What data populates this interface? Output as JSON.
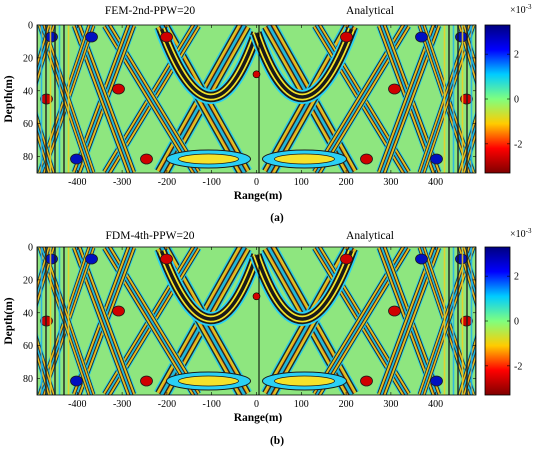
{
  "chart_data": [
    {
      "type": "heatmap",
      "subfigure_label": "(a)",
      "left_title": "FEM-2nd-PPW=20",
      "right_title": "Analytical",
      "xlabel": "Range(m)",
      "ylabel": "Depth(m)",
      "xlim": [
        -490,
        490
      ],
      "ylim": [
        0,
        90
      ],
      "y_inverted": true,
      "xticks": [
        -400,
        -300,
        -200,
        -100,
        0,
        100,
        200,
        300,
        400
      ],
      "yticks": [
        0,
        20,
        40,
        60,
        80
      ],
      "source": {
        "x": 0,
        "y": 30
      },
      "colorbar": {
        "exponent_label": "×10",
        "exponent": "-3",
        "ticks": [
          2,
          0,
          -2
        ],
        "range": [
          -3.3,
          3.3
        ],
        "colormap": [
          "#7f0000",
          "#ff0000",
          "#ffcc00",
          "#7fff7f",
          "#00ccff",
          "#0000ff",
          "#00007f"
        ]
      }
    },
    {
      "type": "heatmap",
      "subfigure_label": "(b)",
      "left_title": "FDM-4th-PPW=20",
      "right_title": "Analytical",
      "xlabel": "Range(m)",
      "ylabel": "Depth(m)",
      "xlim": [
        -490,
        490
      ],
      "ylim": [
        0,
        90
      ],
      "y_inverted": true,
      "xticks": [
        -400,
        -300,
        -200,
        -100,
        0,
        100,
        200,
        300,
        400
      ],
      "yticks": [
        0,
        20,
        40,
        60,
        80
      ],
      "source": {
        "x": 0,
        "y": 30
      },
      "colorbar": {
        "exponent_label": "×10",
        "exponent": "-3",
        "ticks": [
          2,
          0,
          -2
        ],
        "range": [
          -3.3,
          3.3
        ],
        "colormap": [
          "#7f0000",
          "#ff0000",
          "#ffcc00",
          "#7fff7f",
          "#00ccff",
          "#0000ff",
          "#00007f"
        ]
      }
    }
  ]
}
